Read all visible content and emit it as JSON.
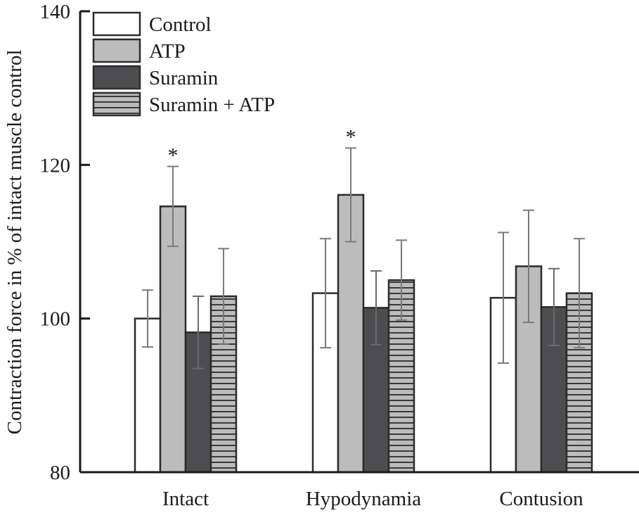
{
  "chart_data": {
    "type": "bar",
    "title": "",
    "xlabel": "",
    "ylabel": "Contraction force in % of intact muscle control",
    "ylim": [
      80,
      140
    ],
    "yticks": [
      80,
      100,
      120,
      140
    ],
    "ytick_labels": [
      "80",
      "100",
      "120",
      "140"
    ],
    "grid": false,
    "legend_position": "top-left",
    "categories": [
      "Intact",
      "Hypodynamia",
      "Contusion"
    ],
    "series": [
      {
        "name": "Control",
        "fill": "#ffffff",
        "pattern": "none",
        "values": [
          100.0,
          103.3,
          102.7
        ],
        "error": [
          3.7,
          7.1,
          8.5
        ],
        "significant": [
          false,
          false,
          false
        ]
      },
      {
        "name": "ATP",
        "fill": "#bcbcbc",
        "pattern": "none",
        "values": [
          114.6,
          116.1,
          106.8
        ],
        "error": [
          5.2,
          6.1,
          7.3
        ],
        "significant": [
          true,
          true,
          false
        ]
      },
      {
        "name": "Suramin",
        "fill": "#4d4d4f",
        "pattern": "none",
        "values": [
          98.2,
          101.4,
          101.5
        ],
        "error": [
          4.7,
          4.8,
          5.0
        ],
        "significant": [
          false,
          false,
          false
        ]
      },
      {
        "name": "Suramin + ATP",
        "fill": "#bcbcbc",
        "pattern": "horizontal-stripes",
        "values": [
          102.9,
          105.0,
          103.3
        ],
        "error": [
          6.2,
          5.2,
          7.1
        ],
        "significant": [
          false,
          false,
          false
        ]
      }
    ],
    "significance_marker": "*"
  },
  "colors": {
    "axis": "#1a1a1a",
    "bar_outline": "#2b2b2b",
    "error_bar": "#7a7a7a",
    "stripe_dark": "#3a3a3a"
  }
}
